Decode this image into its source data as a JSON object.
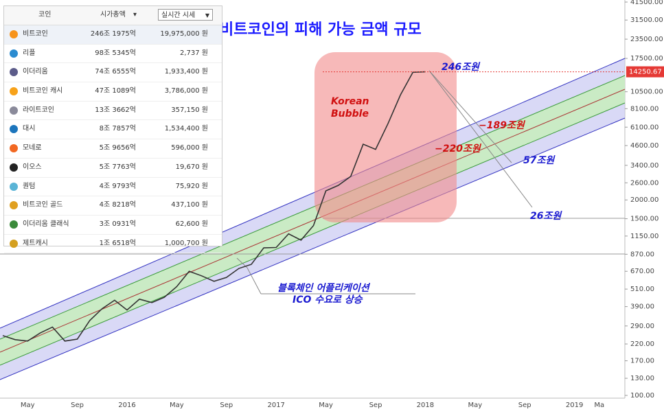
{
  "title": "비트코인의  피해 가능 금액 규모",
  "table": {
    "headers": [
      "코인",
      "시가총액"
    ],
    "sort_mark": "▾",
    "dropdown": "실시간 시세",
    "dropdown_mark": "▼",
    "rows": [
      [
        "비트코인",
        "246조 1975억",
        "19,975,000 원"
      ],
      [
        "리플",
        "98조 5345억",
        "2,737 원"
      ],
      [
        "이더리움",
        "74조 6555억",
        "1,933,400 원"
      ],
      [
        "비트코인 캐시",
        "47조 1089억",
        "3,786,000 원"
      ],
      [
        "라이트코인",
        "13조 3662억",
        "357,150 원"
      ],
      [
        "대시",
        "8조 7857억",
        "1,534,400 원"
      ],
      [
        "모네로",
        "5조 9656억",
        "596,000 원"
      ],
      [
        "이오스",
        "5조 7763억",
        "19,670 원"
      ],
      [
        "퀀텀",
        "4조 9793억",
        "75,920 원"
      ],
      [
        "비트코인 골드",
        "4조 8218억",
        "437,100 원"
      ],
      [
        "이더리움 클래식",
        "3조 0931억",
        "62,600 원"
      ],
      [
        "제트캐시",
        "1조 6518억",
        "1,000,700 원"
      ]
    ]
  },
  "annotations": {
    "bubble": [
      "Korean",
      "Bubble"
    ],
    "peak": "246조원",
    "loss1": "−189조원",
    "loss2": "−220조원",
    "rest1": "57조원",
    "rest2": "26조원",
    "note": [
      "블록체인 어플리케이션",
      "ICO 수요로 상승"
    ]
  },
  "chart_data": {
    "type": "line",
    "log_scale": true,
    "color": "#333333",
    "categories": [
      null,
      null,
      "May",
      null,
      null,
      null,
      "Sep",
      null,
      null,
      null,
      "2016",
      null,
      null,
      null,
      "May",
      null,
      null,
      null,
      "Sep",
      null,
      null,
      null,
      "2017",
      null,
      null,
      null,
      "May",
      null,
      null,
      null,
      "Sep",
      null,
      null,
      null,
      "2018",
      null,
      null,
      null,
      "May",
      null,
      null,
      null,
      "Sep",
      null,
      null,
      null,
      "2019",
      null,
      "Ma"
    ],
    "values": [
      250,
      235,
      230,
      260,
      285,
      230,
      237,
      315,
      378,
      430,
      370,
      437,
      415,
      450,
      530,
      670,
      625,
      575,
      610,
      700,
      745,
      960,
      965,
      1190,
      1080,
      1350,
      2300,
      2500,
      2870,
      4700,
      4340,
      6450,
      10000,
      14150,
      14250,
      null,
      null,
      null,
      null,
      null,
      null,
      null,
      null,
      null,
      null,
      null,
      null,
      null,
      null
    ],
    "current_price": 14250.67,
    "ylim": [
      100,
      41500
    ],
    "yticks": [
      {
        "value": 41500,
        "label": "41500.00"
      },
      {
        "value": 31500,
        "label": "31500.00"
      },
      {
        "value": 23500,
        "label": "23500.00"
      },
      {
        "value": 17500,
        "label": "17500.00"
      },
      {
        "value": 10500,
        "label": "10500.00"
      },
      {
        "value": 8100,
        "label": "8100.00"
      },
      {
        "value": 6100,
        "label": "6100.00"
      },
      {
        "value": 4600,
        "label": "4600.00"
      },
      {
        "value": 3400,
        "label": "3400.00"
      },
      {
        "value": 2600,
        "label": "2600.00"
      },
      {
        "value": 2000,
        "label": "2000.00"
      },
      {
        "value": 1500,
        "label": "1500.00"
      },
      {
        "value": 1150,
        "label": "1150.00"
      },
      {
        "value": 870,
        "label": "870.00"
      },
      {
        "value": 670,
        "label": "670.00"
      },
      {
        "value": 510,
        "label": "510.00"
      },
      {
        "value": 390,
        "label": "390.00"
      },
      {
        "value": 290,
        "label": "290.00"
      },
      {
        "value": 220,
        "label": "220.00"
      },
      {
        "value": 170,
        "label": "170.00"
      },
      {
        "value": 130,
        "label": "130.00"
      },
      {
        "value": 100,
        "label": "100.00"
      }
    ]
  }
}
